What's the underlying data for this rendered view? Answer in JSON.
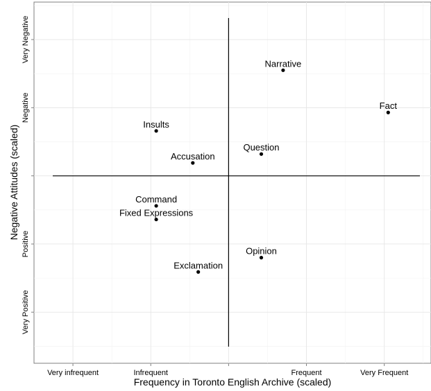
{
  "chart_data": {
    "type": "scatter",
    "xlabel": "Frequency in Toronto English Archive (scaled)",
    "ylabel": "Negative Attitudes (scaled)",
    "xlim": [
      -2.5,
      2.6
    ],
    "ylim": [
      -2.75,
      2.55
    ],
    "x_ticks": [
      {
        "value": -2,
        "label": "Very infrequent"
      },
      {
        "value": -1,
        "label": "Infrequent"
      },
      {
        "value": 0,
        "label": ""
      },
      {
        "value": 1,
        "label": "Frequent"
      },
      {
        "value": 2,
        "label": "Very Frequent"
      }
    ],
    "y_ticks": [
      {
        "value": 2,
        "label": "Very Negative"
      },
      {
        "value": 1,
        "label": "Negative"
      },
      {
        "value": 0,
        "label": ""
      },
      {
        "value": -1,
        "label": "Positive"
      },
      {
        "value": -2,
        "label": "Very Positive"
      }
    ],
    "reference_lines": {
      "x": 0,
      "y": 0
    },
    "grid": true,
    "points": [
      {
        "label": "Narrative",
        "x": 0.7,
        "y": 1.55
      },
      {
        "label": "Fact",
        "x": 2.05,
        "y": 0.93
      },
      {
        "label": "Insults",
        "x": -0.93,
        "y": 0.66
      },
      {
        "label": "Question",
        "x": 0.42,
        "y": 0.32
      },
      {
        "label": "Accusation",
        "x": -0.46,
        "y": 0.19
      },
      {
        "label": "Command",
        "x": -0.93,
        "y": -0.44
      },
      {
        "label": "Fixed Expressions",
        "x": -0.93,
        "y": -0.64
      },
      {
        "label": "Opinion",
        "x": 0.42,
        "y": -1.2
      },
      {
        "label": "Exclamation",
        "x": -0.39,
        "y": -1.41
      }
    ]
  }
}
